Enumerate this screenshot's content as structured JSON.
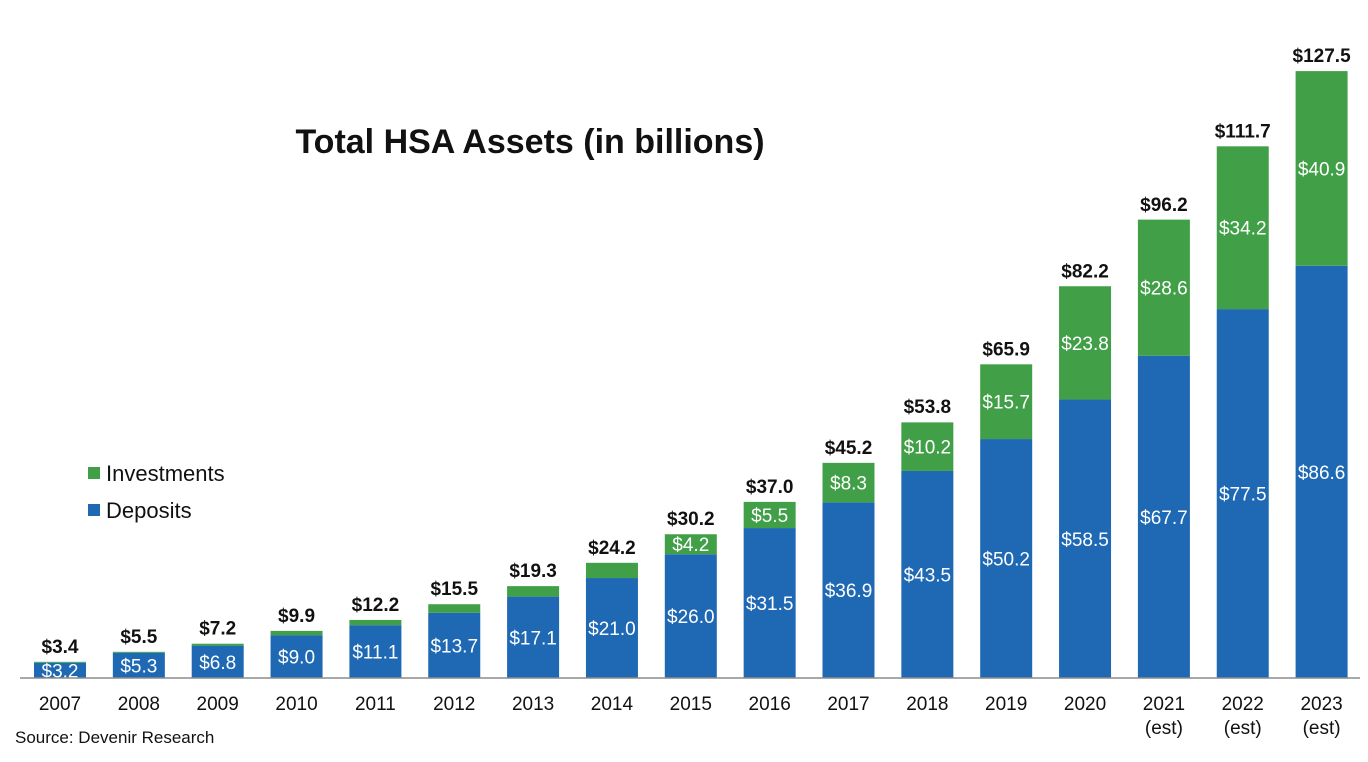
{
  "chart_data": {
    "type": "bar",
    "stacked": true,
    "title": "Total HSA Assets (in billions)",
    "categories": [
      [
        "2007"
      ],
      [
        "2008"
      ],
      [
        "2009"
      ],
      [
        "2010"
      ],
      [
        "2011"
      ],
      [
        "2012"
      ],
      [
        "2013"
      ],
      [
        "2014"
      ],
      [
        "2015"
      ],
      [
        "2016"
      ],
      [
        "2017"
      ],
      [
        "2018"
      ],
      [
        "2019"
      ],
      [
        "2020"
      ],
      [
        "2021",
        "(est)"
      ],
      [
        "2022",
        "(est)"
      ],
      [
        "2023",
        "(est)"
      ]
    ],
    "series": [
      {
        "name": "Deposits",
        "color": "#1f69b4",
        "values": [
          3.2,
          5.3,
          6.8,
          9.0,
          11.1,
          13.7,
          17.1,
          21.0,
          26.0,
          31.5,
          36.9,
          43.5,
          50.2,
          58.5,
          67.7,
          77.5,
          86.6
        ],
        "labels": [
          "$3.2",
          "$5.3",
          "$6.8",
          "$9.0",
          "$11.1",
          "$13.7",
          "$17.1",
          "$21.0",
          "$26.0",
          "$31.5",
          "$36.9",
          "$43.5",
          "$50.2",
          "$58.5",
          "$67.7",
          "$77.5",
          "$86.6"
        ]
      },
      {
        "name": "Investments",
        "color": "#41a047",
        "values": [
          0.2,
          0.2,
          0.4,
          0.9,
          1.1,
          1.8,
          2.2,
          3.2,
          4.2,
          5.5,
          8.3,
          10.2,
          15.7,
          23.8,
          28.6,
          34.2,
          40.9
        ],
        "labels": [
          "",
          "",
          "",
          "",
          "",
          "",
          "",
          "",
          "$4.2",
          "$5.5",
          "$8.3",
          "$10.2",
          "$15.7",
          "$23.8",
          "$28.6",
          "$34.2",
          "$40.9"
        ]
      }
    ],
    "totals": [
      3.4,
      5.5,
      7.2,
      9.9,
      12.2,
      15.5,
      19.3,
      24.2,
      30.2,
      37.0,
      45.2,
      53.8,
      65.9,
      82.2,
      96.2,
      111.7,
      127.5
    ],
    "total_labels": [
      "$3.4",
      "$5.5",
      "$7.2",
      "$9.9",
      "$12.2",
      "$15.5",
      "$19.3",
      "$24.2",
      "$30.2",
      "$37.0",
      "$45.2",
      "$53.8",
      "$65.9",
      "$82.2",
      "$96.2",
      "$111.7",
      "$127.5"
    ],
    "ylim": [
      0,
      128
    ],
    "grid": false,
    "legend": {
      "placement": "left",
      "entries": [
        {
          "name": "Investments",
          "color": "#41a047"
        },
        {
          "name": "Deposits",
          "color": "#1f69b4"
        }
      ]
    },
    "xlabel": "",
    "ylabel": ""
  },
  "source": "Source: Devenir Research"
}
